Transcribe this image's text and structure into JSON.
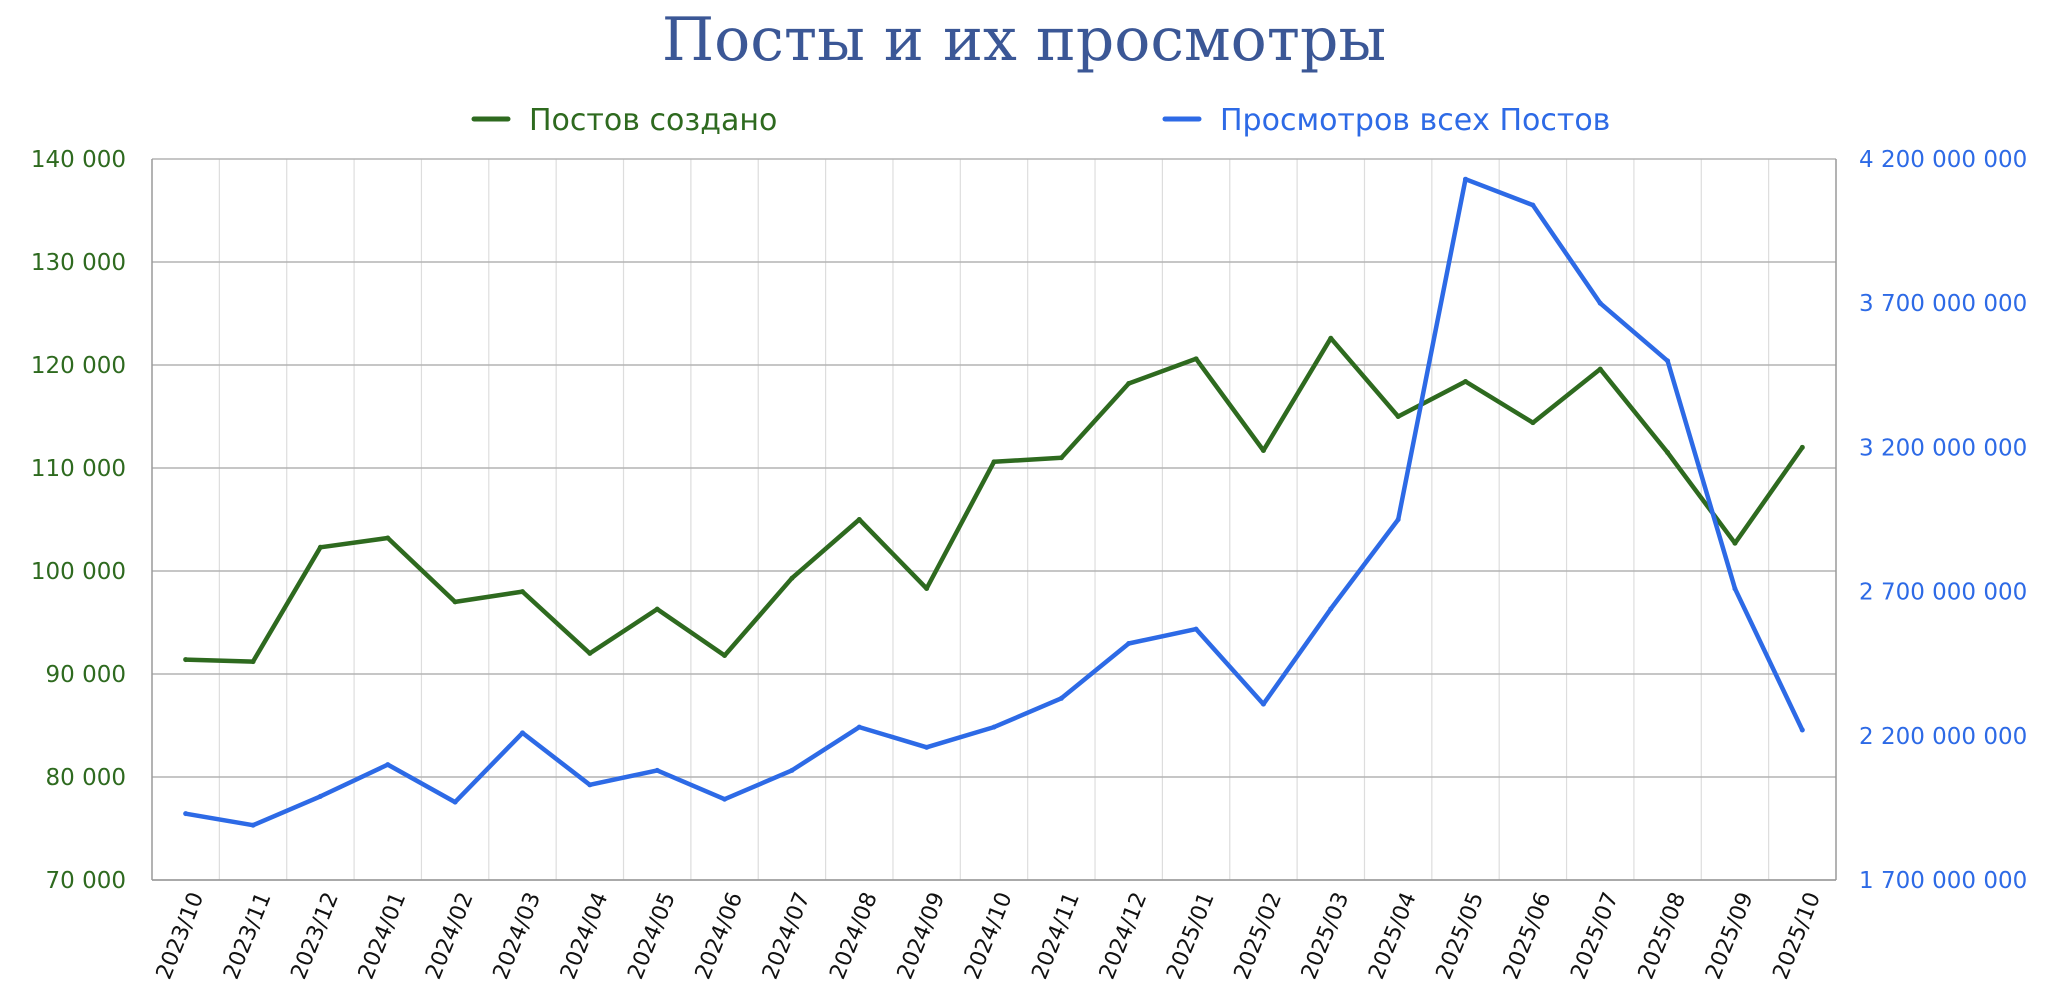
{
  "chart_data": {
    "type": "line",
    "title": "Посты и их просмотры",
    "categories": [
      "2023/10",
      "2023/11",
      "2023/12",
      "2024/01",
      "2024/02",
      "2024/03",
      "2024/04",
      "2024/05",
      "2024/06",
      "2024/07",
      "2024/08",
      "2024/09",
      "2024/10",
      "2024/11",
      "2024/12",
      "2025/01",
      "2025/02",
      "2025/03",
      "2025/04",
      "2025/05",
      "2025/06",
      "2025/07",
      "2025/08",
      "2025/09",
      "2025/10"
    ],
    "series": [
      {
        "name": "Постов создано",
        "axis": "left",
        "color": "#2e6a1f",
        "values": [
          91400,
          91200,
          102300,
          103200,
          97000,
          98000,
          92000,
          96300,
          91800,
          99300,
          105000,
          98300,
          110600,
          111000,
          118200,
          120600,
          111700,
          122600,
          115000,
          118400,
          114400,
          119600,
          111500,
          102700,
          112000
        ]
      },
      {
        "name": "Просмотров всех Постов",
        "axis": "right",
        "color": "#2d6ae6",
        "values": [
          1930000000,
          1890000000,
          1990000000,
          2100000000,
          1970000000,
          2210000000,
          2030000000,
          2080000000,
          1980000000,
          2080000000,
          2230000000,
          2160000000,
          2230000000,
          2330000000,
          2520000000,
          2570000000,
          2310000000,
          2640000000,
          2950000000,
          4130000000,
          4040000000,
          3700000000,
          3500000000,
          2710000000,
          2220000000
        ]
      }
    ],
    "y_left": {
      "ylim": [
        70000,
        140000
      ],
      "ticks": [
        70000,
        80000,
        90000,
        100000,
        110000,
        120000,
        130000,
        140000
      ],
      "tick_labels": [
        "70 000",
        "80 000",
        "90 000",
        "100 000",
        "110 000",
        "120 000",
        "130 000",
        "140 000"
      ]
    },
    "y_right": {
      "ylim": [
        1700000000,
        4200000000
      ],
      "ticks": [
        1700000000,
        2200000000,
        2700000000,
        3200000000,
        3700000000,
        4200000000
      ],
      "tick_labels": [
        "1 700 000 000",
        "2 200 000 000",
        "2 700 000 000",
        "3 200 000 000",
        "3 700 000 000",
        "4 200 000 000"
      ]
    },
    "grid": true,
    "legend_position": "top"
  }
}
